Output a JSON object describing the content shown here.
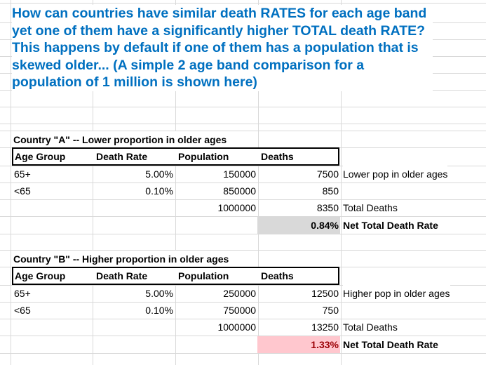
{
  "title": "How can countries have similar death RATES for each age band yet one of them have a significantly higher TOTAL death RATE? This happens by default if one of them has a population that is skewed older... (A simple 2 age band comparison for a population of 1 million is shown here)",
  "table_a": {
    "caption": "Country \"A\" -- Lower proportion in older ages",
    "headers": [
      "Age Group",
      "Death Rate",
      "Population",
      "Deaths"
    ],
    "rows": [
      {
        "age": "65+",
        "rate": "5.00%",
        "pop": "150000",
        "deaths": "7500",
        "note": "Lower pop in older ages"
      },
      {
        "age": "<65",
        "rate": "0.10%",
        "pop": "850000",
        "deaths": "850",
        "note": ""
      }
    ],
    "total_pop": "1000000",
    "total_deaths": "8350",
    "total_deaths_label": "Total Deaths",
    "net_rate": "0.84%",
    "net_rate_label": "Net Total Death Rate"
  },
  "table_b": {
    "caption": "Country \"B\" -- Higher proportion in older ages",
    "headers": [
      "Age Group",
      "Death Rate",
      "Population",
      "Deaths"
    ],
    "rows": [
      {
        "age": "65+",
        "rate": "5.00%",
        "pop": "250000",
        "deaths": "12500",
        "note": "Higher pop in older ages"
      },
      {
        "age": "<65",
        "rate": "0.10%",
        "pop": "750000",
        "deaths": "750",
        "note": ""
      }
    ],
    "total_pop": "1000000",
    "total_deaths": "13250",
    "total_deaths_label": "Total Deaths",
    "net_rate": "1.33%",
    "net_rate_label": "Net Total Death Rate"
  }
}
